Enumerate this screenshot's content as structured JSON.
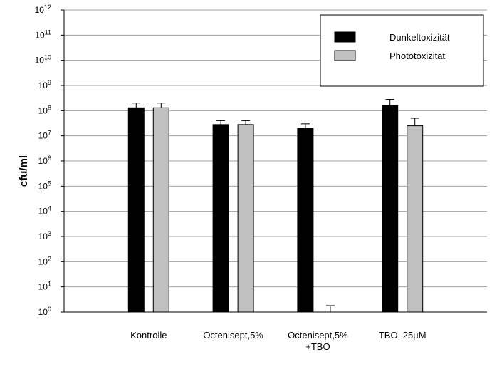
{
  "chart_data": {
    "type": "bar",
    "ylabel": "cfu/ml",
    "xlabel": "",
    "yscale": "log",
    "ylim": [
      1,
      1000000000000.0
    ],
    "ytick_exponents": [
      0,
      1,
      2,
      3,
      4,
      5,
      6,
      7,
      8,
      9,
      10,
      11,
      12
    ],
    "ytick_base": "10",
    "categories": [
      [
        "Kontrolle"
      ],
      [
        "Octenisept,5%"
      ],
      [
        "Octenisept,5%",
        "+TBO"
      ],
      [
        "TBO, 25µM"
      ]
    ],
    "series": [
      {
        "name": "Dunkeltoxizität",
        "color": "#000000",
        "values": [
          130000000.0,
          28000000.0,
          20000000.0,
          160000000.0
        ],
        "errors_upper": [
          200000000.0,
          40000000.0,
          30000000.0,
          280000000.0
        ]
      },
      {
        "name": "Phototoxizität",
        "color": "#c0c0c0",
        "values": [
          130000000.0,
          28000000.0,
          1.0,
          25000000.0
        ],
        "errors_upper": [
          200000000.0,
          40000000.0,
          1.8,
          50000000.0
        ]
      }
    ],
    "grid": "horizontal",
    "legend_position": "top-right"
  }
}
